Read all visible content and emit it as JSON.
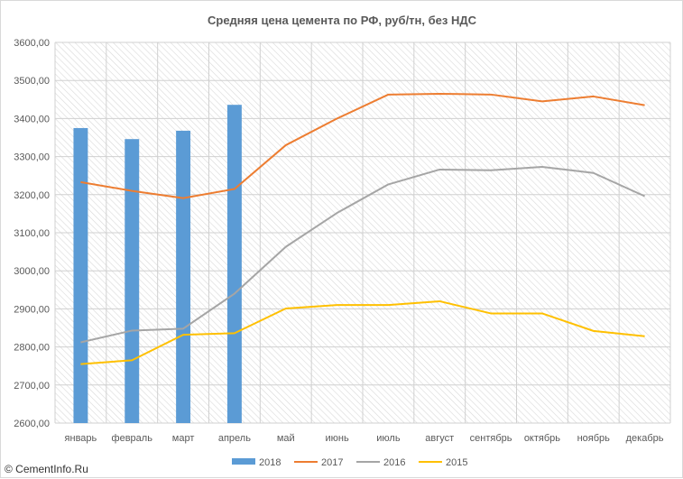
{
  "chart_data": {
    "type": "bar+line",
    "title": "Средняя цена цемента по РФ, руб/тн, без НДС",
    "categories": [
      "январь",
      "февраль",
      "март",
      "апрель",
      "май",
      "июнь",
      "июль",
      "август",
      "сентябрь",
      "октябрь",
      "ноябрь",
      "декабрь"
    ],
    "ylim": [
      2600,
      3600
    ],
    "yticks": [
      "2600,00",
      "2700,00",
      "2800,00",
      "2900,00",
      "3000,00",
      "3100,00",
      "3200,00",
      "3300,00",
      "3400,00",
      "3500,00",
      "3600,00"
    ],
    "series": [
      {
        "name": "2018",
        "kind": "bar",
        "color": "#5b9bd5",
        "values": [
          3375,
          3346,
          3368,
          3436,
          null,
          null,
          null,
          null,
          null,
          null,
          null,
          null
        ]
      },
      {
        "name": "2017",
        "kind": "line",
        "color": "#ed7d31",
        "values": [
          3233,
          3210,
          3191,
          3215,
          3330,
          3400,
          3463,
          3465,
          3463,
          3445,
          3458,
          3435
        ]
      },
      {
        "name": "2016",
        "kind": "line",
        "color": "#a5a5a5",
        "values": [
          2812,
          2843,
          2848,
          2940,
          3063,
          3152,
          3227,
          3266,
          3264,
          3273,
          3257,
          3196
        ]
      },
      {
        "name": "2015",
        "kind": "line",
        "color": "#ffc000",
        "values": [
          2755,
          2765,
          2832,
          2836,
          2901,
          2910,
          2910,
          2920,
          2888,
          2888,
          2842,
          2828
        ]
      }
    ],
    "grid": true,
    "legend_position": "bottom"
  },
  "watermark": "© CementInfo.Ru"
}
